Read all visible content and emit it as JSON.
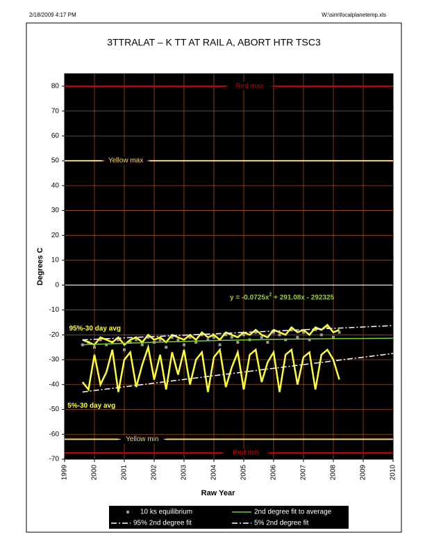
{
  "header": {
    "left": "2/18/2009 4:17 PM",
    "right": "W:\\sim\\focalplanetemp.xls"
  },
  "chart_data": {
    "type": "scatter",
    "title": "3TTRALAT    – K  TT AT RAIL A, ABORT HTR TSC3",
    "x_label": "Raw Year",
    "y_label": "Degrees C",
    "xlim": [
      1999,
      2010
    ],
    "xticks": [
      1999,
      2000,
      2001,
      2002,
      2003,
      2004,
      2005,
      2006,
      2007,
      2008,
      2009,
      2010
    ],
    "ylim": [
      -70,
      85
    ],
    "yticks": [
      -70,
      -60,
      -50,
      -40,
      -30,
      -20,
      -10,
      0,
      10,
      20,
      30,
      40,
      50,
      60,
      70,
      80
    ],
    "grid": true,
    "grid_color": "#a0521c",
    "background": "#000000",
    "equation_parts": [
      "y = -0.0725x",
      "2",
      " + 291.08x - 292325"
    ],
    "equation_color": "#9acd32",
    "reference_lines": [
      {
        "name": "Red max",
        "value": 80,
        "color": "#d40000"
      },
      {
        "name": "Yellow max",
        "value": 50,
        "color": "#ffd27a"
      },
      {
        "name": "Yellow min",
        "value": -62,
        "color": "#ffd27a"
      },
      {
        "name": "Red min",
        "value": -67.5,
        "color": "#d40000"
      }
    ],
    "series": [
      {
        "name": "10 ks equilibrium",
        "kind": "points",
        "color": "#9a9a9a",
        "x": [
          1999.6,
          1999.8,
          2000.0,
          2000.2,
          2000.4,
          2000.6,
          2000.8,
          2001.0,
          2001.2,
          2001.4,
          2001.6,
          2001.8,
          2002.0,
          2002.2,
          2002.4,
          2002.6,
          2002.8,
          2003.0,
          2003.2,
          2003.4,
          2003.6,
          2003.8,
          2004.0,
          2004.2,
          2004.4,
          2004.6,
          2004.8,
          2005.0,
          2005.2,
          2005.4,
          2005.6,
          2005.8,
          2006.0,
          2006.2,
          2006.4,
          2006.6,
          2006.8,
          2007.0,
          2007.2,
          2007.4,
          2007.6,
          2007.8,
          2008.0,
          2008.2
        ],
        "values": [
          -24,
          -23,
          -25,
          -22,
          -24,
          -23,
          -22,
          -26,
          -23,
          -22,
          -24,
          -21,
          -23,
          -22,
          -25,
          -21,
          -22,
          -24,
          -21,
          -23,
          -20,
          -22,
          -21,
          -24,
          -20,
          -21,
          -23,
          -20,
          -22,
          -19,
          -21,
          -23,
          -19,
          -20,
          -22,
          -18,
          -21,
          -19,
          -22,
          -18,
          -20,
          -17,
          -21,
          -19
        ]
      },
      {
        "name": "2nd degree fit to average",
        "kind": "line",
        "dash": "solid",
        "color": "#7ccd3c",
        "x": [
          1999.6,
          2002,
          2004,
          2006,
          2008.3,
          2010
        ],
        "values": [
          -24,
          -23,
          -22.3,
          -21.8,
          -21.5,
          -21.4
        ]
      },
      {
        "name": "95% 2nd degree fit",
        "kind": "line",
        "dash": "dashdot",
        "color": "#ffffff",
        "x": [
          1999.6,
          2010
        ],
        "values": [
          -22,
          -16.3
        ]
      },
      {
        "name": "5% 2nd degree fit",
        "kind": "line",
        "dash": "dashdot",
        "color": "#ffffff",
        "x": [
          1999.6,
          2010
        ],
        "values": [
          -43,
          -27.5
        ]
      }
    ],
    "labeled_series": [
      {
        "name": "95%-30 day avg",
        "color": "#ffff33",
        "x": [
          1999.6,
          1999.8,
          2000.0,
          2000.2,
          2000.4,
          2000.6,
          2000.8,
          2001.0,
          2001.2,
          2001.4,
          2001.6,
          2001.8,
          2002.0,
          2002.2,
          2002.4,
          2002.6,
          2002.8,
          2003.0,
          2003.2,
          2003.4,
          2003.6,
          2003.8,
          2004.0,
          2004.2,
          2004.4,
          2004.6,
          2004.8,
          2005.0,
          2005.2,
          2005.4,
          2005.6,
          2005.8,
          2006.0,
          2006.2,
          2006.4,
          2006.6,
          2006.8,
          2007.0,
          2007.2,
          2007.4,
          2007.6,
          2007.8,
          2008.0,
          2008.2
        ],
        "values": [
          -22,
          -23,
          -24,
          -21,
          -22,
          -23,
          -21,
          -24,
          -22,
          -21,
          -23,
          -20,
          -22,
          -21,
          -23,
          -20,
          -21,
          -22,
          -20,
          -22,
          -19,
          -21,
          -20,
          -22,
          -19,
          -20,
          -21,
          -19,
          -20,
          -18,
          -20,
          -21,
          -18,
          -19,
          -20,
          -17,
          -19,
          -18,
          -20,
          -17,
          -18,
          -16,
          -19,
          -18
        ]
      },
      {
        "name": "5%-30 day avg",
        "color": "#ffff33",
        "x": [
          1999.6,
          1999.8,
          2000.0,
          2000.2,
          2000.4,
          2000.6,
          2000.8,
          2001.0,
          2001.2,
          2001.4,
          2001.6,
          2001.8,
          2002.0,
          2002.2,
          2002.4,
          2002.6,
          2002.8,
          2003.0,
          2003.2,
          2003.4,
          2003.6,
          2003.8,
          2004.0,
          2004.2,
          2004.4,
          2004.6,
          2004.8,
          2005.0,
          2005.2,
          2005.4,
          2005.6,
          2005.8,
          2006.0,
          2006.2,
          2006.4,
          2006.6,
          2006.8,
          2007.0,
          2007.2,
          2007.4,
          2007.6,
          2007.8,
          2008.0,
          2008.2
        ],
        "values": [
          -39,
          -42,
          -28,
          -40,
          -35,
          -26,
          -43,
          -30,
          -27,
          -41,
          -32,
          -25,
          -38,
          -28,
          -42,
          -27,
          -36,
          -26,
          -40,
          -30,
          -27,
          -43,
          -29,
          -26,
          -41,
          -33,
          -27,
          -42,
          -28,
          -26,
          -39,
          -31,
          -27,
          -43,
          -28,
          -26,
          -40,
          -29,
          -27,
          -42,
          -28,
          -26,
          -30,
          -38
        ]
      }
    ]
  }
}
